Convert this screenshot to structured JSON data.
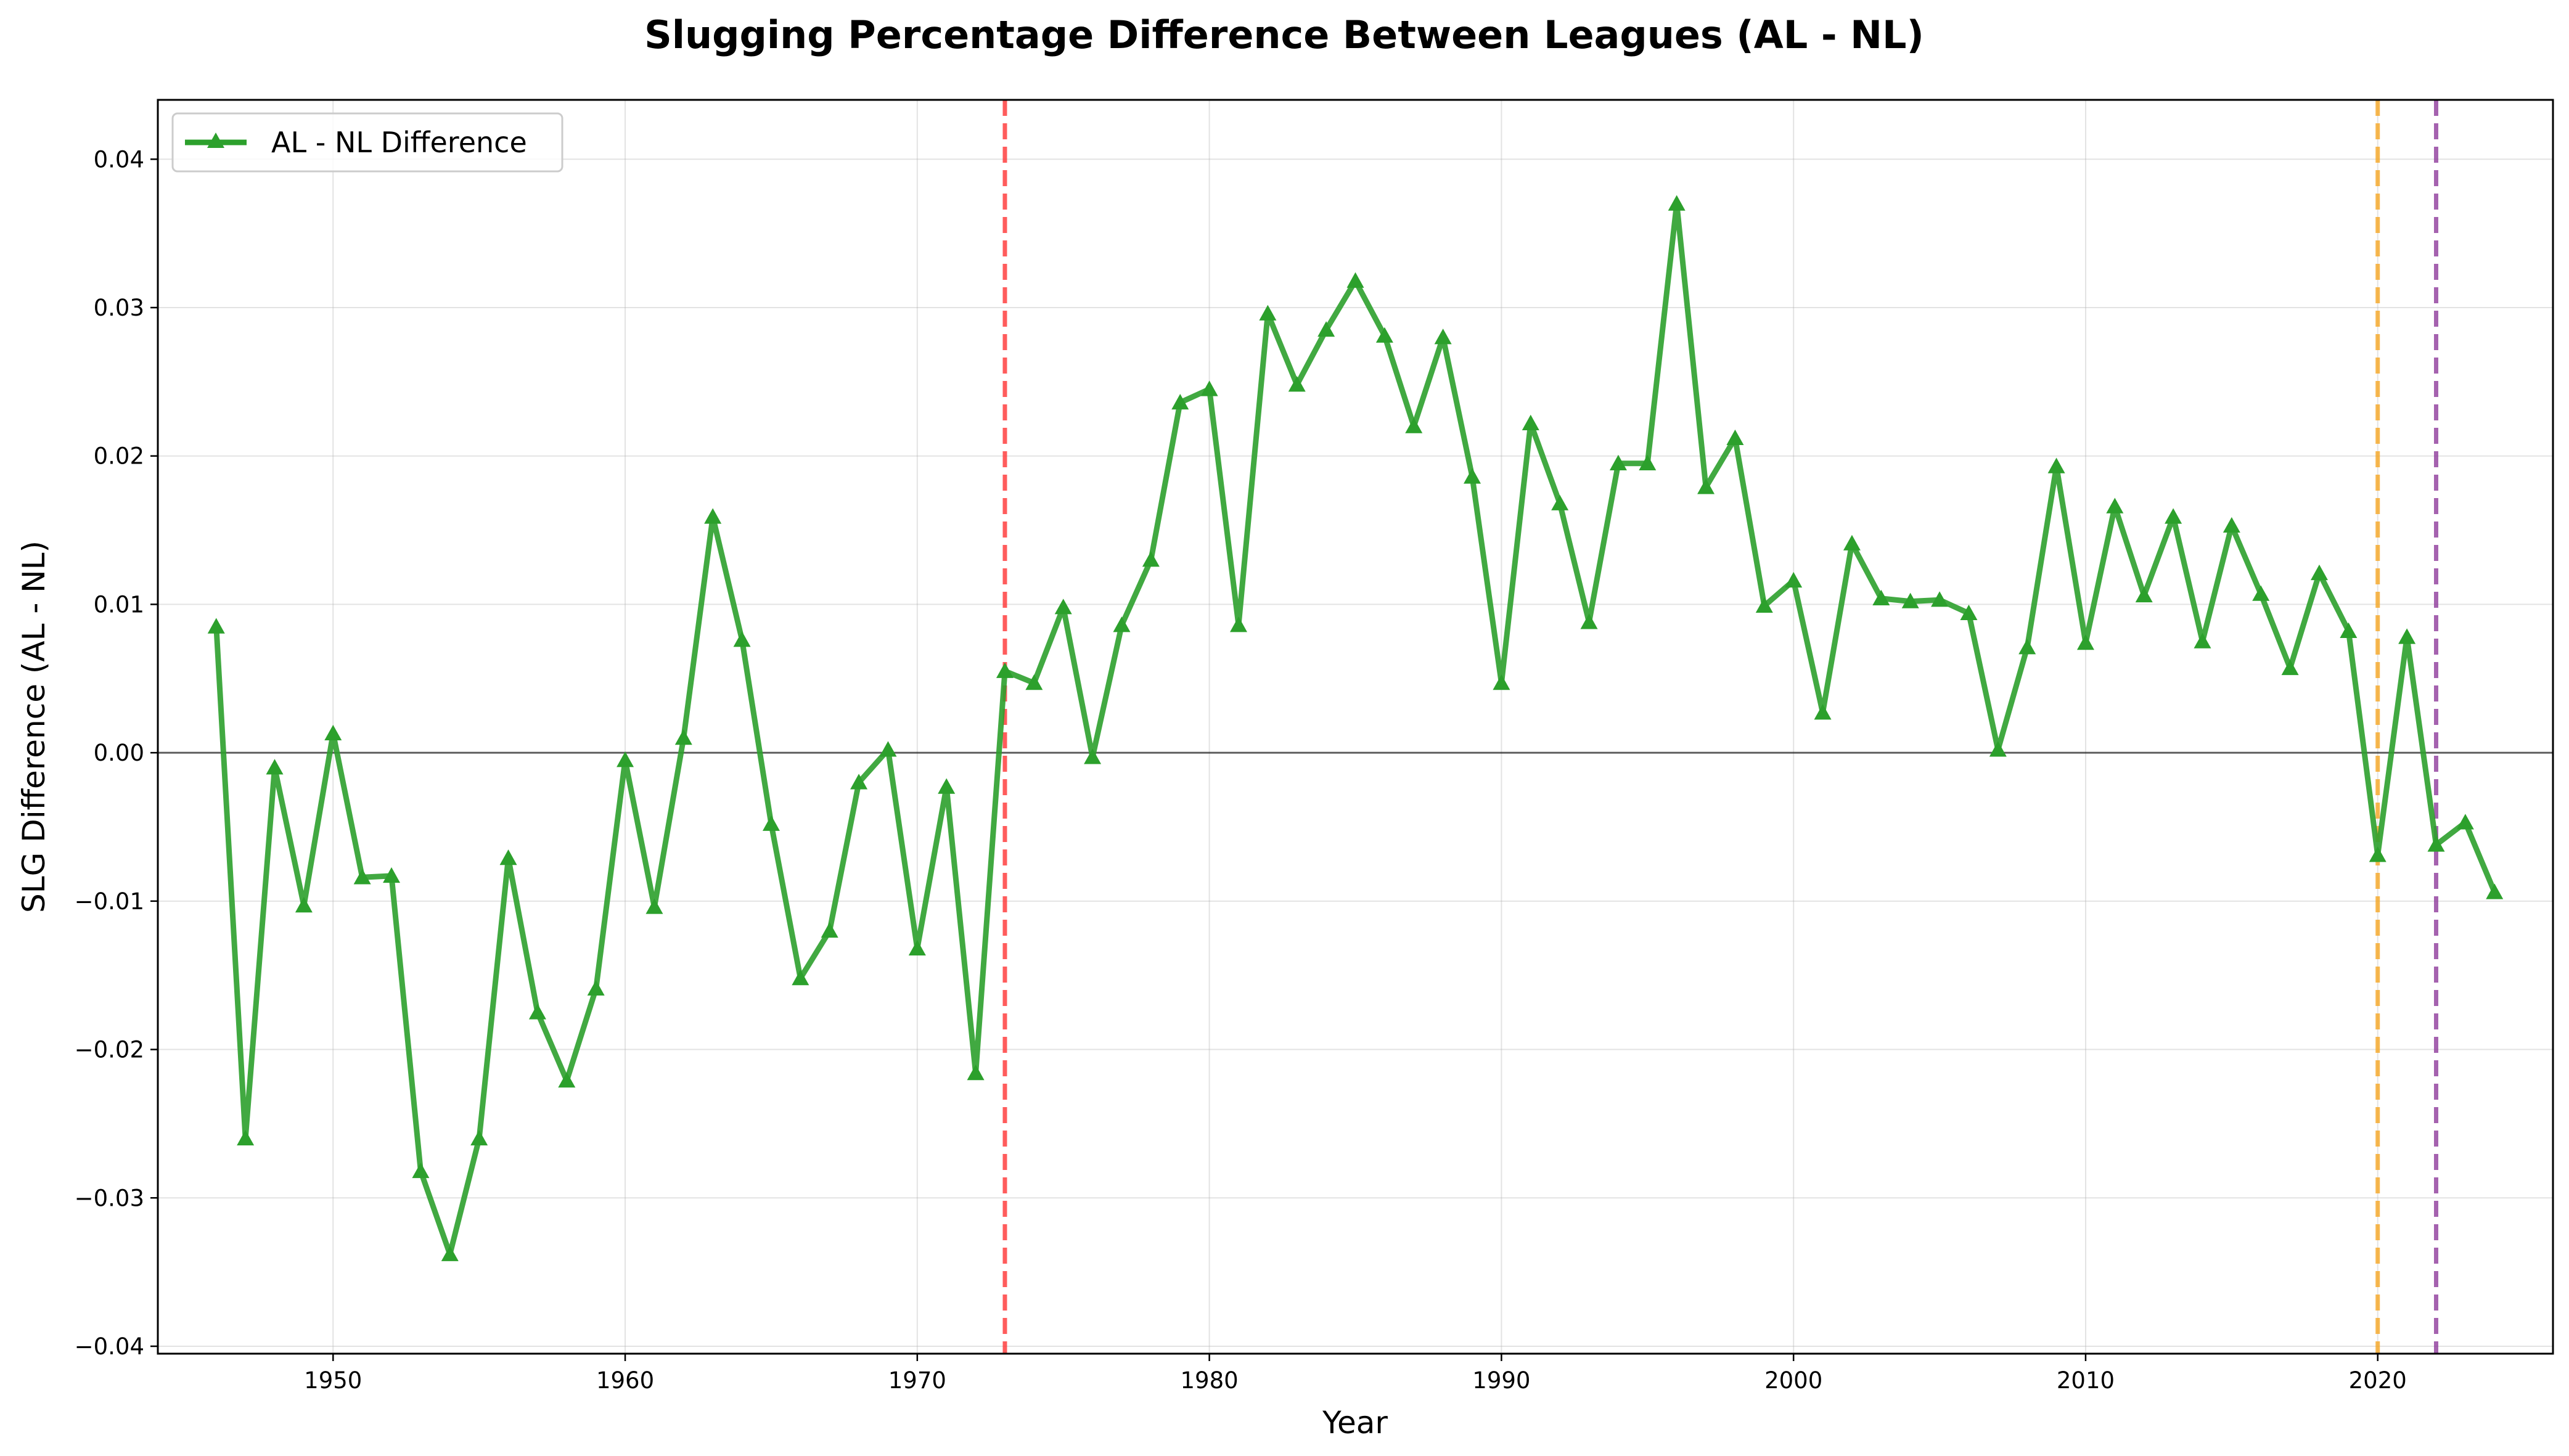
{
  "chart_data": {
    "type": "line",
    "title": "Slugging Percentage Difference Between Leagues (AL - NL)",
    "xlabel": "Year",
    "ylabel": "SLG Difference (AL - NL)",
    "xlim": [
      1944,
      2026
    ],
    "ylim": [
      -0.0405,
      0.044
    ],
    "x_ticks": [
      1950,
      1960,
      1970,
      1980,
      1990,
      2000,
      2010,
      2020
    ],
    "y_ticks": [
      -0.04,
      -0.03,
      -0.02,
      -0.01,
      0.0,
      0.01,
      0.02,
      0.03,
      0.04
    ],
    "y_tick_labels": [
      "−0.04",
      "−0.03",
      "−0.02",
      "−0.01",
      "0.00",
      "0.01",
      "0.02",
      "0.03",
      "0.04"
    ],
    "grid": true,
    "legend_position": "top-left",
    "zero_line": 0.0,
    "series": [
      {
        "name": "AL - NL Difference",
        "color": "#2ca02c",
        "marker": "triangle-up",
        "x": [
          1946,
          1947,
          1948,
          1949,
          1950,
          1951,
          1952,
          1953,
          1954,
          1955,
          1956,
          1957,
          1958,
          1959,
          1960,
          1961,
          1962,
          1963,
          1964,
          1965,
          1966,
          1967,
          1968,
          1969,
          1970,
          1971,
          1972,
          1973,
          1974,
          1975,
          1976,
          1977,
          1978,
          1979,
          1980,
          1981,
          1982,
          1983,
          1984,
          1985,
          1986,
          1987,
          1988,
          1989,
          1990,
          1991,
          1992,
          1993,
          1994,
          1995,
          1996,
          1997,
          1998,
          1999,
          2000,
          2001,
          2002,
          2003,
          2004,
          2005,
          2006,
          2007,
          2008,
          2009,
          2010,
          2011,
          2012,
          2013,
          2014,
          2015,
          2016,
          2017,
          2018,
          2019,
          2020,
          2021,
          2022,
          2023,
          2024
        ],
        "y": [
          0.0085,
          -0.026,
          -0.001,
          -0.0103,
          0.0013,
          -0.0084,
          -0.0083,
          -0.0282,
          -0.0338,
          -0.026,
          -0.0071,
          -0.0175,
          -0.0221,
          -0.0159,
          -0.0005,
          -0.0104,
          0.001,
          0.0159,
          0.0076,
          -0.0048,
          -0.0152,
          -0.012,
          -0.002,
          0.0002,
          -0.0132,
          -0.0023,
          -0.0216,
          0.0055,
          0.0047,
          0.0098,
          -0.0003,
          0.0086,
          0.013,
          0.0236,
          0.0245,
          0.0086,
          0.0296,
          0.0248,
          0.0285,
          0.0318,
          0.0281,
          0.022,
          0.028,
          0.0186,
          0.0047,
          0.0222,
          0.0168,
          0.0088,
          0.0195,
          0.0195,
          0.037,
          0.0179,
          0.0212,
          0.0099,
          0.0116,
          0.0027,
          0.0141,
          0.0104,
          0.0102,
          0.0103,
          0.0094,
          0.0002,
          0.0071,
          0.0193,
          0.0074,
          0.0166,
          0.0106,
          0.0159,
          0.0075,
          0.0153,
          0.0107,
          0.0057,
          0.0121,
          0.0082,
          -0.0069,
          0.0078,
          -0.0062,
          -0.0047,
          -0.0094
        ]
      }
    ],
    "reference_lines": [
      {
        "x": 1973,
        "color": "#ff3333"
      },
      {
        "x": 2020,
        "color": "#f5a623"
      },
      {
        "x": 2022,
        "color": "#8e3b9b"
      }
    ]
  }
}
